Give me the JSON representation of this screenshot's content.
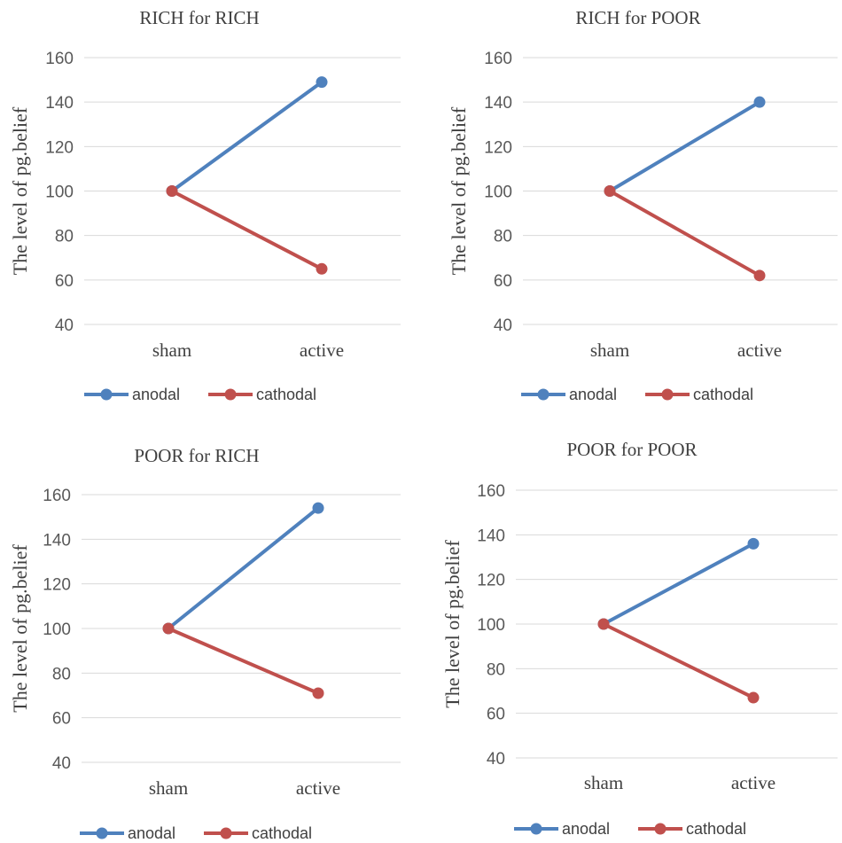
{
  "chart_data": [
    {
      "type": "line",
      "title": "RICH for RICH",
      "ylabel": "The level of pg.belief",
      "xlabel": "",
      "categories": [
        "sham",
        "active"
      ],
      "ylim": [
        40,
        160
      ],
      "yticks": [
        40,
        60,
        80,
        100,
        120,
        140,
        160
      ],
      "grid": true,
      "legend": "bottom",
      "series": [
        {
          "name": "anodal",
          "color": "#4f81bd",
          "values": [
            100,
            149
          ]
        },
        {
          "name": "cathodal",
          "color": "#c0504d",
          "values": [
            100,
            65
          ]
        }
      ]
    },
    {
      "type": "line",
      "title": "RICH for POOR",
      "ylabel": "The level of pg.belief",
      "xlabel": "",
      "categories": [
        "sham",
        "active"
      ],
      "ylim": [
        40,
        160
      ],
      "yticks": [
        40,
        60,
        80,
        100,
        120,
        140,
        160
      ],
      "grid": true,
      "legend": "bottom",
      "series": [
        {
          "name": "anodal",
          "color": "#4f81bd",
          "values": [
            100,
            140
          ]
        },
        {
          "name": "cathodal",
          "color": "#c0504d",
          "values": [
            100,
            62
          ]
        }
      ]
    },
    {
      "type": "line",
      "title": "POOR for RICH",
      "ylabel": "The level of pg.belief",
      "xlabel": "",
      "categories": [
        "sham",
        "active"
      ],
      "ylim": [
        40,
        160
      ],
      "yticks": [
        40,
        60,
        80,
        100,
        120,
        140,
        160
      ],
      "grid": true,
      "legend": "bottom",
      "series": [
        {
          "name": "anodal",
          "color": "#4f81bd",
          "values": [
            100,
            154
          ]
        },
        {
          "name": "cathodal",
          "color": "#c0504d",
          "values": [
            100,
            71
          ]
        }
      ]
    },
    {
      "type": "line",
      "title": "POOR for POOR",
      "ylabel": "The level of pg.belief",
      "xlabel": "",
      "categories": [
        "sham",
        "active"
      ],
      "ylim": [
        40,
        160
      ],
      "yticks": [
        40,
        60,
        80,
        100,
        120,
        140,
        160
      ],
      "grid": true,
      "legend": "bottom",
      "series": [
        {
          "name": "anodal",
          "color": "#4f81bd",
          "values": [
            100,
            136
          ]
        },
        {
          "name": "cathodal",
          "color": "#c0504d",
          "values": [
            100,
            67
          ]
        }
      ]
    }
  ]
}
